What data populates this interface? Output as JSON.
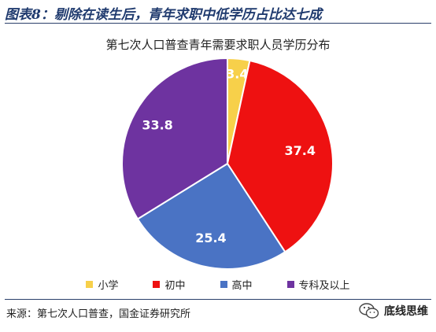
{
  "header": {
    "title": "图表8：剔除在读生后，青年求职中低学历占比达七成"
  },
  "footer": {
    "source": "来源：第七次人口普查，国金证券研究所",
    "brand": "底线思维",
    "brand_icon": "wechat-icon"
  },
  "chart_data": {
    "type": "pie",
    "title": "第七次人口普查青年需要求职人员学历分布",
    "categories": [
      "小学",
      "初中",
      "高中",
      "专科及以上"
    ],
    "values": [
      3.4,
      37.4,
      25.4,
      33.8
    ],
    "labels": [
      "3.4",
      "37.4",
      "25.4",
      "33.8"
    ],
    "colors": [
      "#f7d04a",
      "#ee1111",
      "#4a73c4",
      "#6e33a0"
    ],
    "start_angle": "12 o'clock, clockwise",
    "legend_position": "bottom"
  }
}
